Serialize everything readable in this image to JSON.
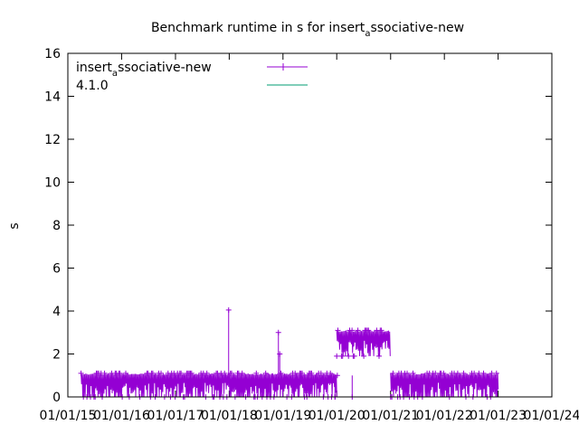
{
  "chart_data": {
    "type": "line",
    "title_parts": [
      "Benchmark runtime in s for insert",
      "a",
      "ssociative-new"
    ],
    "ylabel": "s",
    "xlabel": "",
    "ylim": [
      0,
      16
    ],
    "y_ticks": [
      0,
      2,
      4,
      6,
      8,
      10,
      12,
      14,
      16
    ],
    "x_ticks": [
      "01/01/15",
      "01/01/16",
      "01/01/17",
      "01/01/18",
      "01/01/19",
      "01/01/20",
      "01/01/21",
      "01/01/22",
      "01/01/23",
      "01/01/24"
    ],
    "xlim": [
      "2015-01-01",
      "2024-01-01"
    ],
    "grid": false,
    "legend_position": "top-left",
    "series": [
      {
        "name_parts": [
          "insert",
          "a",
          "ssociative-new"
        ],
        "color": "#9400d3",
        "marker": "plus",
        "segments": [
          {
            "start": "2015-04-01",
            "end": "2019-12-31",
            "low": 0.0,
            "high": 1.1
          },
          {
            "start": "2020-01-01",
            "end": "2020-12-31",
            "low": 1.9,
            "high": 3.1
          },
          {
            "start": "2021-01-01",
            "end": "2022-12-31",
            "low": 0.0,
            "high": 1.1
          }
        ],
        "spikes": [
          {
            "x": "2017-12-28",
            "y": 4.05
          },
          {
            "x": "2018-12-01",
            "y": 3.0
          },
          {
            "x": "2018-12-10",
            "y": 2.0
          },
          {
            "x": "2019-12-20",
            "y": 0.0
          },
          {
            "x": "2020-01-05",
            "y": 1.0
          },
          {
            "x": "2020-04-15",
            "y": 0.0
          }
        ]
      },
      {
        "name": "4.1.0",
        "color": "#009e73",
        "marker": "none",
        "values": []
      }
    ]
  }
}
